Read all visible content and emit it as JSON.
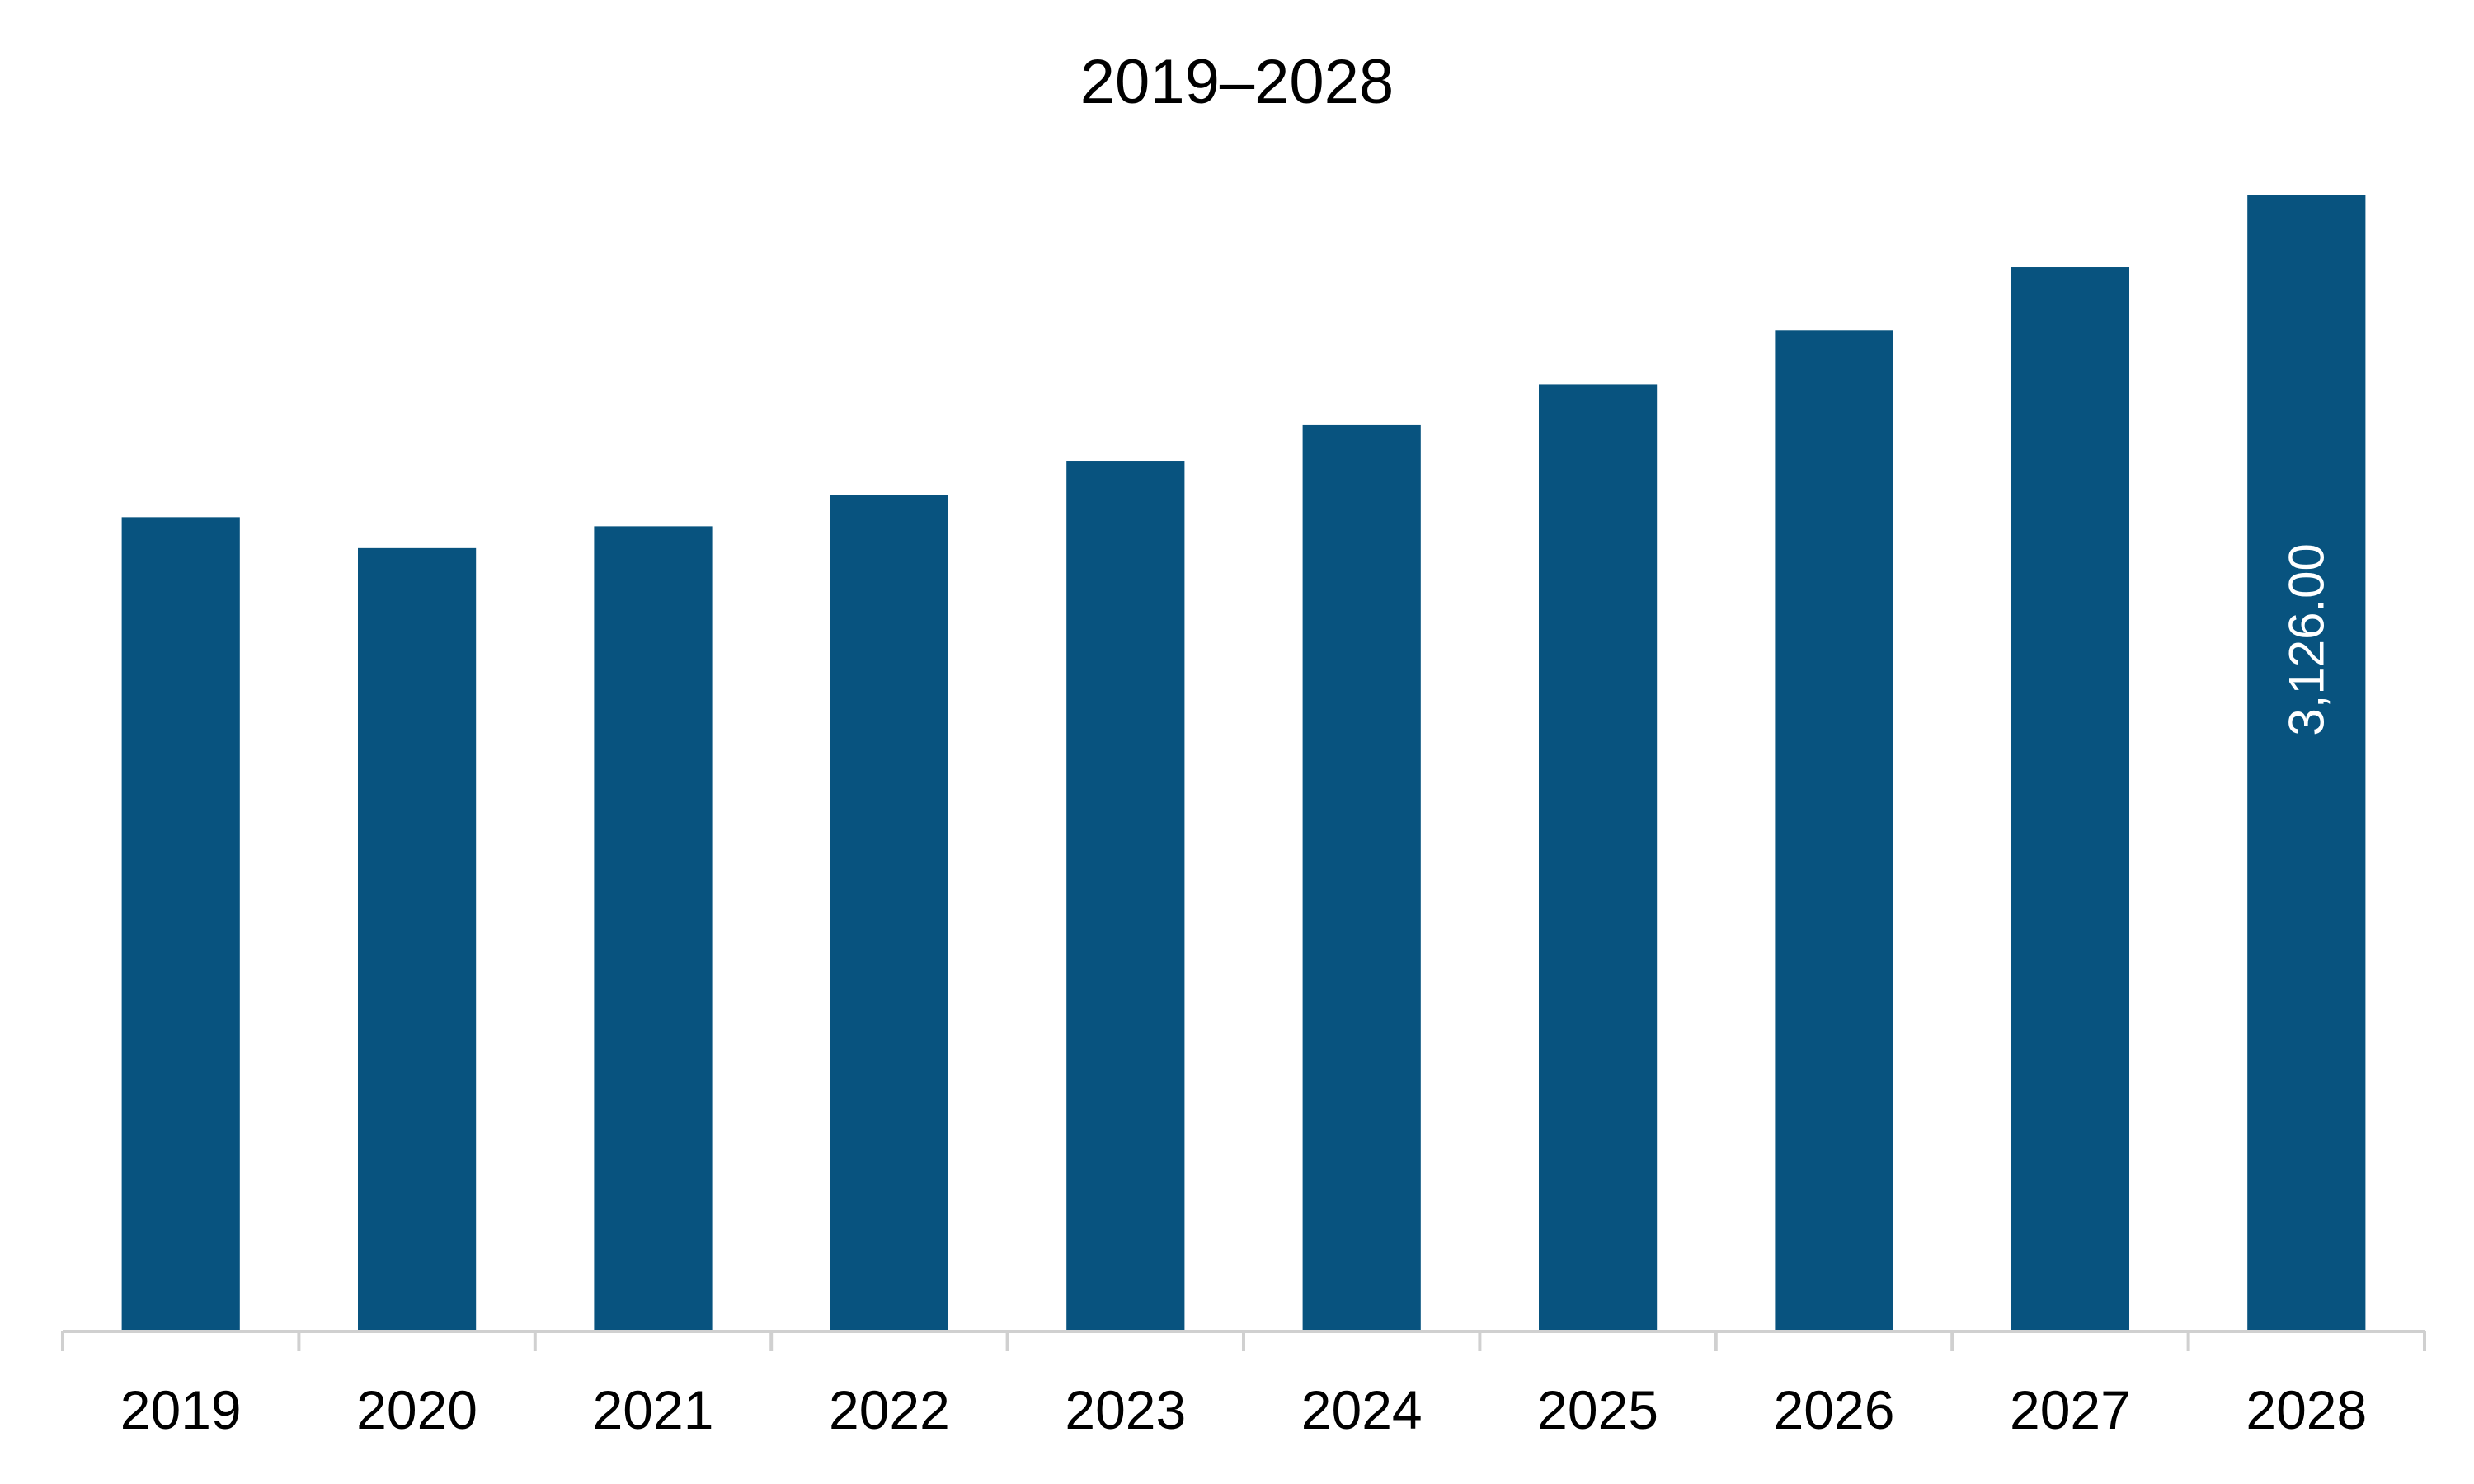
{
  "chart_data": {
    "type": "bar",
    "title": "2019–2028",
    "xlabel": "",
    "ylabel": "",
    "categories": [
      "2019",
      "2020",
      "2021",
      "2022",
      "2023",
      "2024",
      "2025",
      "2026",
      "2027",
      "2028"
    ],
    "values": [
      2240,
      2155,
      2215,
      2300,
      2395,
      2495,
      2605,
      2755,
      2928,
      3126
    ],
    "ylim": [
      0,
      3300
    ],
    "grid": false,
    "legend": "none",
    "data_labels": [
      {
        "category": "2028",
        "text": "3,126.00"
      }
    ],
    "colors": {
      "bar": "#08537F",
      "axis": "#D0D0D0",
      "data_label_text": "#FFFFFF"
    }
  }
}
